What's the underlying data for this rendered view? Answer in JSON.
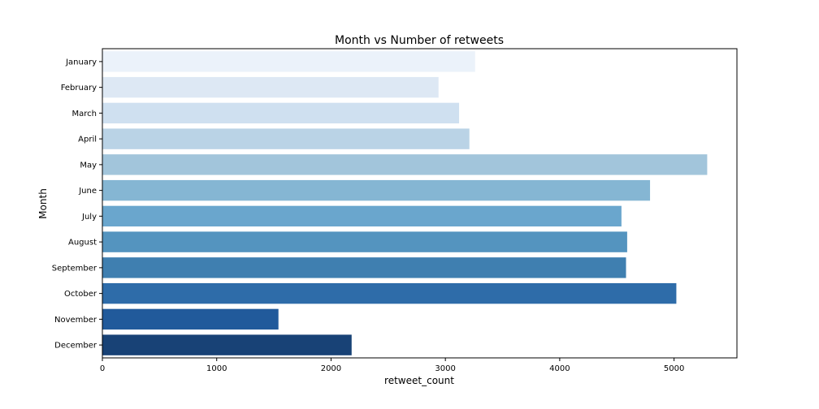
{
  "chart_data": {
    "type": "bar",
    "orientation": "horizontal",
    "title": "Month vs Number of retweets",
    "xlabel": "retweet_count",
    "ylabel": "Month",
    "xlim": [
      0,
      5550
    ],
    "xticks": [
      0,
      1000,
      2000,
      3000,
      4000,
      5000
    ],
    "grid": false,
    "categories": [
      "January",
      "February",
      "March",
      "April",
      "May",
      "June",
      "July",
      "August",
      "September",
      "October",
      "November",
      "December"
    ],
    "values": [
      3260,
      2940,
      3120,
      3210,
      5290,
      4790,
      4540,
      4590,
      4580,
      5020,
      1540,
      2180
    ],
    "colors": [
      "#ebf2fa",
      "#dde8f4",
      "#cfe0f0",
      "#bad3e6",
      "#a2c5db",
      "#85b6d3",
      "#6aa6cd",
      "#5494bf",
      "#3f7fb0",
      "#2e6ca9",
      "#215a9b",
      "#184276"
    ]
  }
}
